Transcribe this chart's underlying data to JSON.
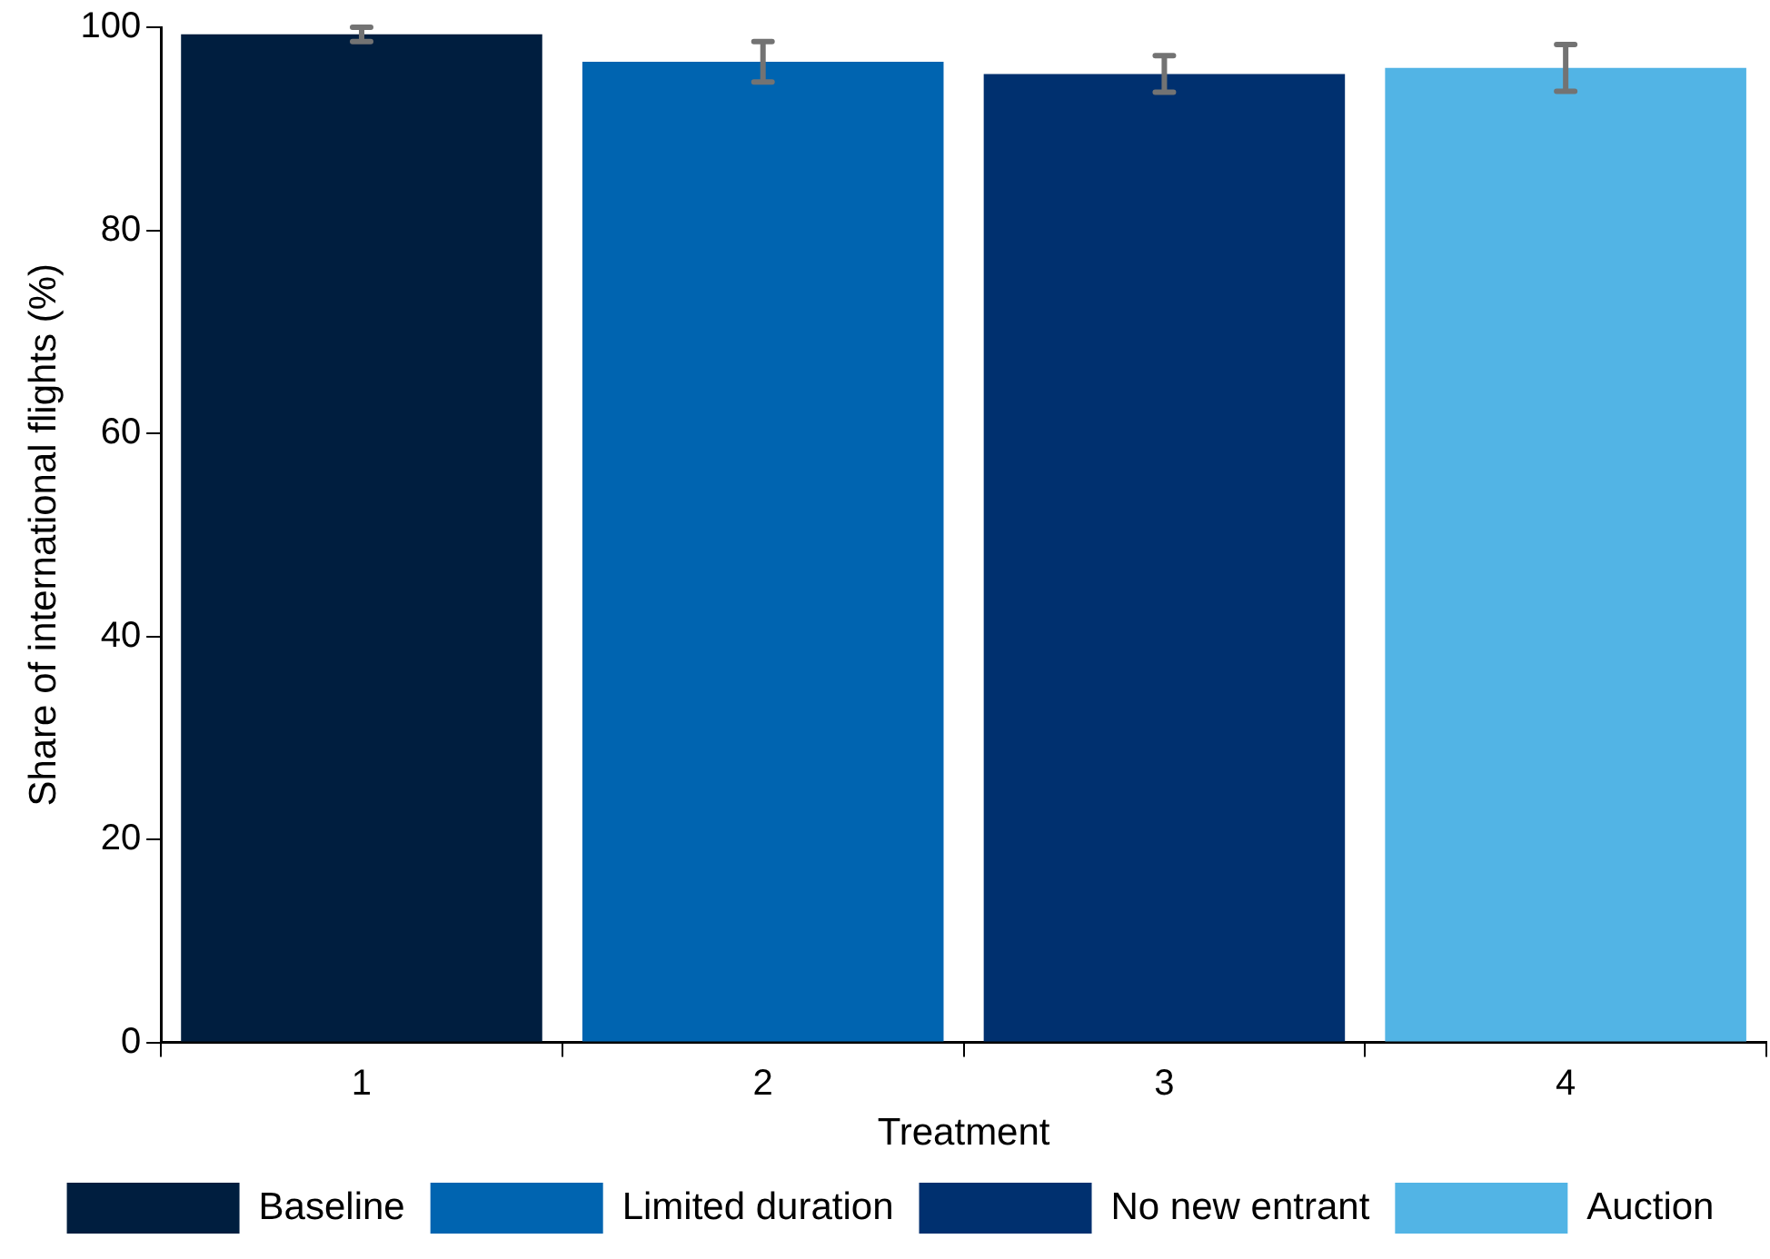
{
  "chart_data": {
    "type": "bar",
    "xlabel": "Treatment",
    "ylabel": "Share of international flights (%)",
    "categories": [
      "1",
      "2",
      "3",
      "4"
    ],
    "series": [
      {
        "name": "Baseline",
        "color": "#001e3f",
        "values": [
          99.3,
          null,
          null,
          null
        ],
        "errors": [
          0.7,
          null,
          null,
          null
        ]
      },
      {
        "name": "Limited duration",
        "color": "#0064b0",
        "values": [
          null,
          96.6,
          null,
          null
        ],
        "errors": [
          null,
          2.0,
          null,
          null
        ]
      },
      {
        "name": "No new entrant",
        "color": "#00306f",
        "values": [
          null,
          null,
          95.4,
          null
        ],
        "errors": [
          null,
          null,
          1.8,
          null
        ]
      },
      {
        "name": "Auction",
        "color": "#52b4e5",
        "values": [
          null,
          null,
          null,
          96.0
        ],
        "errors": [
          null,
          null,
          null,
          2.3
        ]
      }
    ],
    "ylim": [
      0,
      100
    ],
    "yticks": [
      0,
      20,
      40,
      60,
      80,
      100
    ],
    "grid": false,
    "legend": "bottom"
  }
}
